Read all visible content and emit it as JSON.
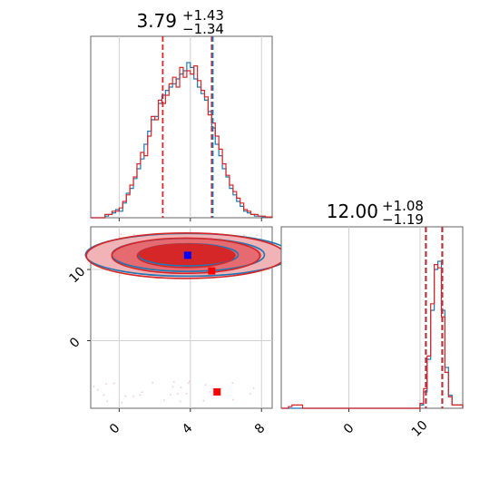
{
  "chart_data": {
    "type": "corner",
    "panels": [
      {
        "name": "marginal-param1",
        "kind": "histogram",
        "title_main": "3.79",
        "title_sup": "+1.43",
        "title_sub": "−1.34",
        "xlim": [
          -1.6,
          8.6
        ],
        "grid_x": [
          0,
          4,
          8
        ],
        "quantile_lines": [
          {
            "x": 2.45,
            "color": "#d62728"
          },
          {
            "x": 5.2,
            "color": "#d62728"
          },
          {
            "x": 5.26,
            "color": "#1f77b4"
          }
        ],
        "series": [
          {
            "color": "#1f77b4",
            "x": [
              -1.6,
              -0.8,
              -0.6,
              -0.4,
              -0.2,
              0,
              0.2,
              0.4,
              0.6,
              0.8,
              1,
              1.2,
              1.4,
              1.6,
              1.8,
              2,
              2.2,
              2.4,
              2.6,
              2.8,
              3,
              3.2,
              3.4,
              3.6,
              3.8,
              4,
              4.2,
              4.4,
              4.6,
              4.8,
              5,
              5.2,
              5.4,
              5.6,
              5.8,
              6,
              6.2,
              6.4,
              6.6,
              6.8,
              7,
              7.2,
              7.4,
              7.6,
              7.8,
              8,
              8.2,
              8.6
            ],
            "y": [
              0,
              0.01,
              0.02,
              0.03,
              0.05,
              0.04,
              0.09,
              0.15,
              0.18,
              0.24,
              0.3,
              0.36,
              0.45,
              0.53,
              0.6,
              0.62,
              0.7,
              0.75,
              0.78,
              0.8,
              0.82,
              0.85,
              0.88,
              0.9,
              0.95,
              0.92,
              0.85,
              0.8,
              0.76,
              0.72,
              0.65,
              0.55,
              0.45,
              0.38,
              0.3,
              0.25,
              0.18,
              0.14,
              0.1,
              0.07,
              0.04,
              0.03,
              0.02,
              0.01,
              0.01,
              0.005,
              0.005,
              0
            ]
          },
          {
            "color": "#d62728",
            "x": [
              -1.6,
              -0.8,
              -0.6,
              -0.4,
              -0.2,
              0,
              0.2,
              0.4,
              0.6,
              0.8,
              1,
              1.2,
              1.4,
              1.6,
              1.8,
              2,
              2.2,
              2.4,
              2.6,
              2.8,
              3,
              3.2,
              3.4,
              3.6,
              3.8,
              4,
              4.2,
              4.4,
              4.6,
              4.8,
              5,
              5.2,
              5.4,
              5.6,
              5.8,
              6,
              6.2,
              6.4,
              6.6,
              6.8,
              7,
              7.2,
              7.4,
              7.6,
              7.8,
              8,
              8.2,
              8.6
            ],
            "y": [
              0,
              0.02,
              0.02,
              0.04,
              0.04,
              0.06,
              0.1,
              0.14,
              0.2,
              0.25,
              0.33,
              0.4,
              0.38,
              0.5,
              0.62,
              0.6,
              0.72,
              0.7,
              0.75,
              0.82,
              0.86,
              0.8,
              0.92,
              0.86,
              0.9,
              0.88,
              0.93,
              0.84,
              0.78,
              0.74,
              0.63,
              0.58,
              0.5,
              0.42,
              0.33,
              0.26,
              0.2,
              0.16,
              0.12,
              0.09,
              0.05,
              0.04,
              0.02,
              0.02,
              0.01,
              0.01,
              0.005,
              0
            ]
          }
        ]
      },
      {
        "name": "joint-2d",
        "kind": "contour",
        "xlim": [
          -1.6,
          8.6
        ],
        "ylim": [
          -9.5,
          16
        ],
        "grid_x": [
          0,
          4,
          8
        ],
        "grid_y": [
          0,
          10
        ],
        "ellipses": [
          {
            "cx": 3.8,
            "cy": 12.0,
            "rx": 3.9,
            "ry": 3.1,
            "color": "#1f77b4",
            "fill": "#f2b3b6"
          },
          {
            "cx": 3.8,
            "cy": 12.0,
            "rx": 2.9,
            "ry": 2.4,
            "color": "#1f77b4",
            "fill": "#e56b70"
          },
          {
            "cx": 3.8,
            "cy": 12.0,
            "rx": 1.9,
            "ry": 1.6,
            "color": "#d62728",
            "fill": "#d62728"
          }
        ],
        "markers": [
          {
            "x": 3.85,
            "y": 12.0,
            "color": "#0000ff"
          },
          {
            "x": 5.2,
            "y": 9.8,
            "color": "#ff0000"
          },
          {
            "x": 5.5,
            "y": -7.2,
            "color": "#ff0000"
          }
        ]
      },
      {
        "name": "marginal-param2",
        "kind": "histogram",
        "title_main": "12.00",
        "title_sup": "+1.08",
        "title_sub": "−1.19",
        "xlim": [
          -9.5,
          16
        ],
        "grid_x": [
          0,
          10
        ],
        "quantile_lines": [
          {
            "x": 10.8,
            "color": "#1f77b4"
          },
          {
            "x": 10.85,
            "color": "#d62728"
          },
          {
            "x": 13.1,
            "color": "#1f77b4"
          },
          {
            "x": 13.15,
            "color": "#d62728"
          }
        ],
        "series": [
          {
            "color": "#1f77b4",
            "x": [
              -9.5,
              -8.5,
              9.5,
              10,
              10.5,
              11,
              11.5,
              12,
              12.5,
              13,
              13.5,
              14,
              14.5,
              16
            ],
            "y": [
              0,
              0,
              0,
              0.02,
              0.1,
              0.3,
              0.6,
              0.85,
              0.9,
              0.6,
              0.25,
              0.08,
              0.02,
              0
            ]
          },
          {
            "color": "#d62728",
            "x": [
              -9.5,
              -8.5,
              -8,
              -6.5,
              9.5,
              10,
              10.5,
              11,
              11.5,
              12,
              12.5,
              13,
              13.5,
              14,
              14.5,
              16
            ],
            "y": [
              0,
              0.01,
              0.02,
              0,
              0,
              0.03,
              0.12,
              0.32,
              0.64,
              0.88,
              0.86,
              0.56,
              0.22,
              0.07,
              0.02,
              0
            ]
          }
        ]
      }
    ],
    "tick_labels": {
      "joint_y": [
        "0",
        "10"
      ],
      "joint_x": [
        "0",
        "4",
        "8"
      ],
      "marg2_x": [
        "0",
        "10"
      ]
    }
  }
}
